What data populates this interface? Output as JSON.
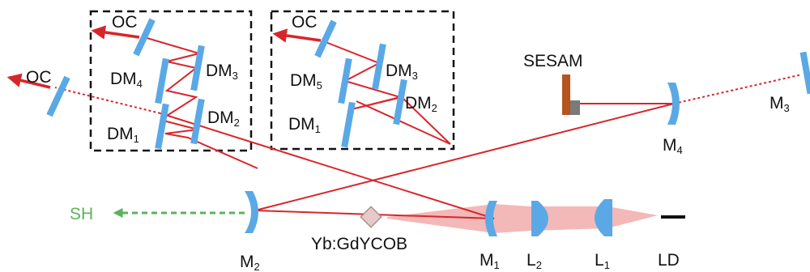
{
  "colors": {
    "beam": "#d7262b",
    "optic": "#5aa9e6",
    "second_harmonic": "#5cb35a",
    "pump_cone": "#f3b8b8",
    "sesam_mount": "#b6541e",
    "sesam_face": "#7a7a7a",
    "box_border": "#111111"
  },
  "labels": {
    "oc_left": "OC",
    "oc_box1": "OC",
    "oc_box2": "OC",
    "dm4": {
      "main": "DM",
      "sub": "4"
    },
    "dm3_a": {
      "main": "DM",
      "sub": "3"
    },
    "dm2_a": {
      "main": "DM",
      "sub": "2"
    },
    "dm1_a": {
      "main": "DM",
      "sub": "1"
    },
    "dm5": {
      "main": "DM",
      "sub": "5"
    },
    "dm3_b": {
      "main": "DM",
      "sub": "3"
    },
    "dm2_b": {
      "main": "DM",
      "sub": "2"
    },
    "dm1_b": {
      "main": "DM",
      "sub": "1"
    },
    "sesam": "SESAM",
    "m3": {
      "main": "M",
      "sub": "3"
    },
    "m4": {
      "main": "M",
      "sub": "4"
    },
    "m2": {
      "main": "M",
      "sub": "2"
    },
    "m1": {
      "main": "M",
      "sub": "1"
    },
    "l2": {
      "main": "L",
      "sub": "2"
    },
    "l1": {
      "main": "L",
      "sub": "1"
    },
    "ld": "LD",
    "sh": "SH",
    "crystal": "Yb:GdYCOB"
  }
}
